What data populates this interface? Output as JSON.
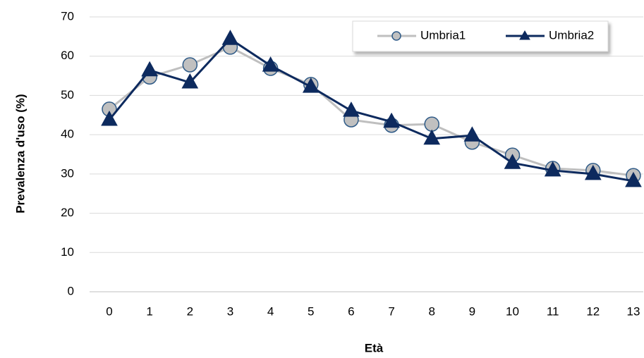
{
  "chart_data": {
    "type": "line",
    "x_label": "Età",
    "y_label": "Prevalenza d'uso (%)",
    "categories": [
      "0",
      "1",
      "2",
      "3",
      "4",
      "5",
      "6",
      "7",
      "8",
      "9",
      "10",
      "11",
      "12",
      "13"
    ],
    "series": [
      {
        "name": "Umbria1",
        "color": "#bfbfbf",
        "marker": "circle",
        "marker_fill": "#c0c0c0",
        "marker_edge": "#2e5a87",
        "values": [
          46.5,
          54.7,
          57.8,
          62.3,
          56.9,
          52.8,
          43.8,
          42.4,
          42.7,
          38.1,
          34.8,
          31.4,
          30.9,
          29.6
        ]
      },
      {
        "name": "Umbria2",
        "color": "#0d2a5e",
        "marker": "triangle",
        "marker_fill": "#0d2a5e",
        "marker_edge": "#0d2a5e",
        "values": [
          43.8,
          56.4,
          53.3,
          64.4,
          57.6,
          52.2,
          46.1,
          43.3,
          39.0,
          39.8,
          32.8,
          30.9,
          30.0,
          28.2
        ]
      }
    ],
    "ylim": [
      0,
      70
    ],
    "yticks": [
      0,
      10,
      20,
      30,
      40,
      50,
      60,
      70
    ],
    "grid": true,
    "legend": "top-right"
  }
}
